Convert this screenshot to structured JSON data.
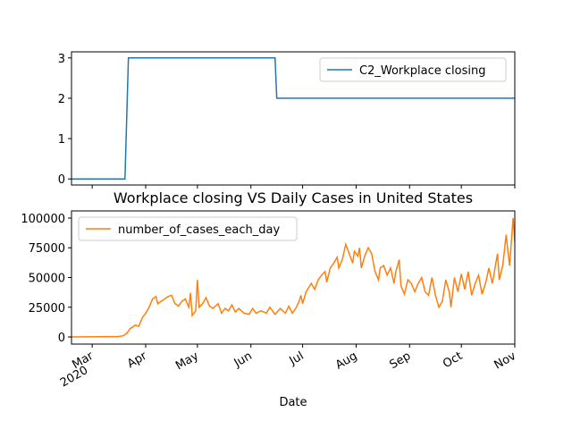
{
  "chart_data": [
    {
      "type": "line",
      "xlim": [
        -12,
        245
      ],
      "ylim": [
        -0.15,
        3.15
      ],
      "yticks": [
        0,
        1,
        2,
        3
      ],
      "xticks": [
        0,
        31,
        61,
        92,
        122,
        153,
        184,
        214,
        245
      ],
      "legend": "upper right",
      "x": [
        -12,
        19,
        21,
        106,
        107,
        245
      ],
      "series": [
        {
          "name": "C2_Workplace closing",
          "color": "#1f77b4",
          "values": [
            0,
            0,
            3,
            3,
            2,
            2
          ]
        }
      ]
    },
    {
      "type": "line",
      "title": "Workplace closing VS Daily Cases in United States",
      "xlabel": "Date",
      "xlim": [
        -12,
        245
      ],
      "ylim": [
        -6000,
        106000
      ],
      "yticks": [
        0,
        25000,
        50000,
        75000,
        100000
      ],
      "xticks": [
        {
          "value": 0,
          "label": "Mar"
        },
        {
          "value": 31,
          "label": "Apr"
        },
        {
          "value": 61,
          "label": "May"
        },
        {
          "value": 92,
          "label": "Jun"
        },
        {
          "value": 122,
          "label": "Jul"
        },
        {
          "value": 153,
          "label": "Aug"
        },
        {
          "value": 184,
          "label": "Sep"
        },
        {
          "value": 214,
          "label": "Oct"
        },
        {
          "value": 245,
          "label": "Nov"
        }
      ],
      "year_label": "2020",
      "legend": "upper left",
      "x": [
        -12,
        15,
        18,
        20,
        22,
        25,
        27,
        29,
        31,
        33,
        35,
        37,
        38,
        40,
        44,
        46,
        48,
        50,
        52,
        54,
        56,
        57,
        58,
        60,
        61,
        62,
        64,
        66,
        68,
        70,
        73,
        75,
        77,
        79,
        81,
        83,
        85,
        88,
        91,
        93,
        95,
        98,
        101,
        103,
        106,
        109,
        112,
        114,
        116,
        118,
        120,
        121,
        122,
        124,
        127,
        129,
        131,
        133,
        135,
        136,
        138,
        140,
        142,
        143,
        145,
        147,
        149,
        151,
        152,
        154,
        155,
        156,
        158,
        160,
        162,
        164,
        166,
        167,
        169,
        171,
        173,
        175,
        176,
        178,
        179,
        181,
        183,
        185,
        187,
        189,
        191,
        193,
        195,
        197,
        199,
        201,
        203,
        205,
        207,
        208,
        210,
        212,
        214,
        216,
        218,
        220,
        222,
        224,
        226,
        228,
        230,
        232,
        234,
        235,
        236,
        238,
        240,
        241,
        242,
        244,
        245
      ],
      "series": [
        {
          "name": "number_of_cases_each_day",
          "color": "#ff7f0e",
          "values": [
            0,
            300,
            1000,
            3000,
            7000,
            10000,
            9000,
            16000,
            20000,
            25000,
            32000,
            34000,
            28000,
            30000,
            34000,
            35000,
            28000,
            26000,
            30000,
            32000,
            25000,
            37000,
            18000,
            22000,
            48000,
            25000,
            28000,
            33000,
            26000,
            24000,
            28000,
            20000,
            24000,
            22000,
            27000,
            21000,
            24000,
            20000,
            19000,
            24000,
            20000,
            22000,
            20000,
            25000,
            19000,
            24000,
            20000,
            26000,
            20000,
            24000,
            30000,
            35000,
            28000,
            38000,
            45000,
            40000,
            48000,
            52000,
            55000,
            46000,
            58000,
            62000,
            67000,
            58000,
            65000,
            78000,
            70000,
            62000,
            72000,
            68000,
            75000,
            58000,
            68000,
            75000,
            70000,
            55000,
            48000,
            58000,
            60000,
            52000,
            58000,
            45000,
            55000,
            65000,
            43000,
            36000,
            48000,
            45000,
            38000,
            45000,
            50000,
            38000,
            35000,
            50000,
            35000,
            25000,
            30000,
            48000,
            38000,
            25000,
            50000,
            38000,
            53000,
            40000,
            55000,
            35000,
            45000,
            52000,
            36000,
            45000,
            58000,
            45000,
            62000,
            70000,
            48000,
            60000,
            86000,
            72000,
            60000,
            100000,
            80000
          ]
        }
      ]
    }
  ]
}
